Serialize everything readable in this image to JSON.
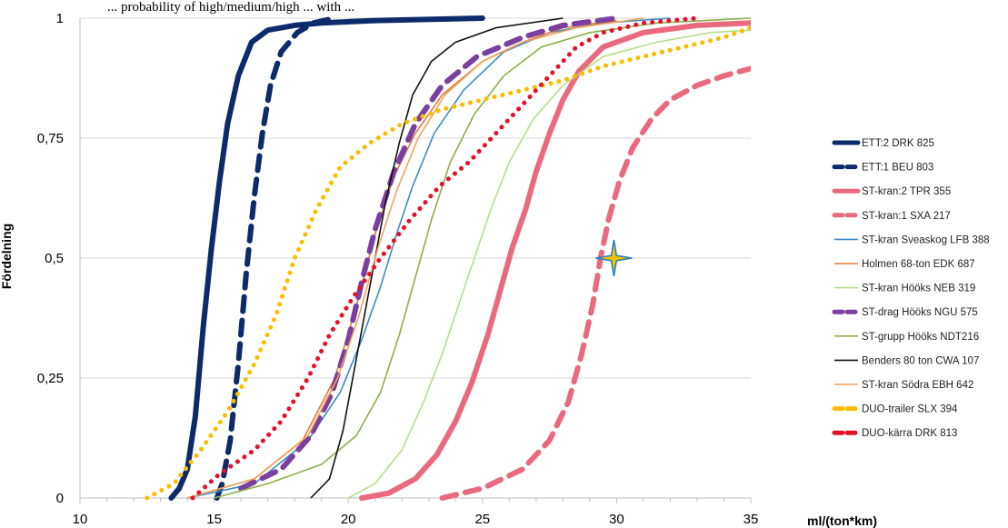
{
  "caption_fragment": "... probability of high/medium/high ... with ...",
  "chart_data": {
    "type": "line",
    "title": "",
    "xlabel": "ml/(ton*km)",
    "ylabel": "Fördelning",
    "xlim": [
      10,
      35
    ],
    "ylim": [
      0,
      1
    ],
    "x_ticks": [
      "10",
      "15",
      "20",
      "25",
      "30",
      "35"
    ],
    "y_ticks": [
      "0",
      "0,25",
      "0,5",
      "0,75",
      "1"
    ],
    "grid": "horizontal",
    "legend_position": "right",
    "series": [
      {
        "name": "ETT:2 DRK 825",
        "color": "#0d2a6b",
        "style": "solid-thick",
        "points": [
          [
            13.4,
            0
          ],
          [
            13.7,
            0.02
          ],
          [
            14.0,
            0.06
          ],
          [
            14.3,
            0.17
          ],
          [
            14.6,
            0.36
          ],
          [
            14.9,
            0.52
          ],
          [
            15.2,
            0.66
          ],
          [
            15.5,
            0.78
          ],
          [
            15.9,
            0.88
          ],
          [
            16.4,
            0.95
          ],
          [
            17.0,
            0.975
          ],
          [
            18.0,
            0.985
          ],
          [
            19.0,
            0.99
          ],
          [
            21.0,
            0.995
          ],
          [
            25,
            1
          ]
        ]
      },
      {
        "name": "ETT:1 BEU 803",
        "color": "#0d2a6b",
        "style": "dashed-thick",
        "points": [
          [
            15.1,
            0
          ],
          [
            15.3,
            0.03
          ],
          [
            15.6,
            0.12
          ],
          [
            15.9,
            0.28
          ],
          [
            16.2,
            0.47
          ],
          [
            16.5,
            0.63
          ],
          [
            16.8,
            0.76
          ],
          [
            17.1,
            0.86
          ],
          [
            17.5,
            0.93
          ],
          [
            18.1,
            0.97
          ],
          [
            18.7,
            0.99
          ],
          [
            19.5,
            1
          ]
        ]
      },
      {
        "name": "ST-kran:2 TPR 355",
        "color": "#e96a7e",
        "style": "solid-thick",
        "points": [
          [
            20.5,
            0
          ],
          [
            21.5,
            0.01
          ],
          [
            22.5,
            0.04
          ],
          [
            23.3,
            0.09
          ],
          [
            24.0,
            0.16
          ],
          [
            24.6,
            0.24
          ],
          [
            25.2,
            0.34
          ],
          [
            25.7,
            0.44
          ],
          [
            26.1,
            0.52
          ],
          [
            26.6,
            0.6
          ],
          [
            27.0,
            0.68
          ],
          [
            27.5,
            0.76
          ],
          [
            28.0,
            0.83
          ],
          [
            28.6,
            0.89
          ],
          [
            29.5,
            0.94
          ],
          [
            31.0,
            0.97
          ],
          [
            33.0,
            0.985
          ],
          [
            35,
            0.99
          ]
        ]
      },
      {
        "name": "ST-kran:1 SXA 217",
        "color": "#e96a7e",
        "style": "dashed-thick",
        "points": [
          [
            23.5,
            0
          ],
          [
            25.0,
            0.02
          ],
          [
            26.5,
            0.06
          ],
          [
            27.5,
            0.12
          ],
          [
            28.2,
            0.2
          ],
          [
            28.7,
            0.3
          ],
          [
            29.1,
            0.4
          ],
          [
            29.4,
            0.5
          ],
          [
            29.7,
            0.58
          ],
          [
            30.1,
            0.66
          ],
          [
            30.6,
            0.73
          ],
          [
            31.3,
            0.79
          ],
          [
            32.0,
            0.83
          ],
          [
            33.0,
            0.86
          ],
          [
            34.0,
            0.88
          ],
          [
            35,
            0.895
          ]
        ]
      },
      {
        "name": "ST-kran Sveaskog LFB 388",
        "color": "#3b8bc2",
        "style": "solid-thin",
        "points": [
          [
            14.0,
            0
          ],
          [
            16.5,
            0.03
          ],
          [
            18.5,
            0.12
          ],
          [
            19.7,
            0.22
          ],
          [
            20.5,
            0.33
          ],
          [
            21.2,
            0.44
          ],
          [
            21.8,
            0.55
          ],
          [
            22.4,
            0.65
          ],
          [
            23.2,
            0.76
          ],
          [
            24.3,
            0.85
          ],
          [
            25.8,
            0.93
          ],
          [
            27.5,
            0.97
          ],
          [
            29.5,
            0.99
          ],
          [
            32,
            1
          ]
        ]
      },
      {
        "name": "Holmen 68-ton EDK 687",
        "color": "#e07b39",
        "style": "solid-thin",
        "points": [
          [
            14.0,
            0
          ],
          [
            16.5,
            0.04
          ],
          [
            18.3,
            0.12
          ],
          [
            19.5,
            0.25
          ],
          [
            20.3,
            0.4
          ],
          [
            21.0,
            0.55
          ],
          [
            21.7,
            0.67
          ],
          [
            22.5,
            0.76
          ],
          [
            23.5,
            0.84
          ],
          [
            25.0,
            0.91
          ],
          [
            26.5,
            0.95
          ],
          [
            28.0,
            0.98
          ],
          [
            30,
            0.995
          ]
        ]
      },
      {
        "name": "ST-kran Hööks NEB 319",
        "color": "#b2df8a",
        "style": "solid-thin",
        "points": [
          [
            20.0,
            0
          ],
          [
            21.0,
            0.03
          ],
          [
            22.0,
            0.1
          ],
          [
            22.8,
            0.2
          ],
          [
            23.5,
            0.3
          ],
          [
            24.1,
            0.4
          ],
          [
            24.7,
            0.5
          ],
          [
            25.3,
            0.6
          ],
          [
            26.0,
            0.7
          ],
          [
            26.9,
            0.79
          ],
          [
            28.0,
            0.86
          ],
          [
            29.5,
            0.92
          ],
          [
            31.5,
            0.95
          ],
          [
            33.5,
            0.97
          ],
          [
            35,
            0.975
          ]
        ]
      },
      {
        "name": "ST-drag Hööks NGU 575",
        "color": "#7b3fa0",
        "style": "dashed-thick",
        "points": [
          [
            16.0,
            0.02
          ],
          [
            17.5,
            0.06
          ],
          [
            18.6,
            0.13
          ],
          [
            19.4,
            0.22
          ],
          [
            20.0,
            0.33
          ],
          [
            20.5,
            0.45
          ],
          [
            21.0,
            0.56
          ],
          [
            21.7,
            0.68
          ],
          [
            22.5,
            0.78
          ],
          [
            23.5,
            0.86
          ],
          [
            24.8,
            0.92
          ],
          [
            26.5,
            0.96
          ],
          [
            28.0,
            0.985
          ],
          [
            30,
            1
          ]
        ]
      },
      {
        "name": "ST-grupp Hööks NDT216",
        "color": "#8ab04a",
        "style": "solid-thin",
        "points": [
          [
            15.0,
            0
          ],
          [
            17.0,
            0.03
          ],
          [
            19.0,
            0.07
          ],
          [
            20.3,
            0.13
          ],
          [
            21.2,
            0.22
          ],
          [
            21.9,
            0.34
          ],
          [
            22.5,
            0.46
          ],
          [
            23.1,
            0.58
          ],
          [
            23.8,
            0.7
          ],
          [
            24.7,
            0.8
          ],
          [
            25.8,
            0.88
          ],
          [
            27.2,
            0.94
          ],
          [
            29.0,
            0.97
          ],
          [
            31.5,
            0.99
          ],
          [
            35,
            1
          ]
        ]
      },
      {
        "name": "Benders 80 ton CWA 107",
        "color": "#111111",
        "style": "solid-thin",
        "points": [
          [
            18.6,
            0
          ],
          [
            19.3,
            0.04
          ],
          [
            19.8,
            0.14
          ],
          [
            20.2,
            0.26
          ],
          [
            20.6,
            0.38
          ],
          [
            21.0,
            0.5
          ],
          [
            21.4,
            0.62
          ],
          [
            21.9,
            0.74
          ],
          [
            22.4,
            0.84
          ],
          [
            23.1,
            0.91
          ],
          [
            24.0,
            0.95
          ],
          [
            25.5,
            0.98
          ],
          [
            28,
            1
          ]
        ]
      },
      {
        "name": "ST-kran Södra EBH 642",
        "color": "#f0a25a",
        "style": "solid-thin",
        "points": [
          [
            14.0,
            0
          ],
          [
            16.5,
            0.04
          ],
          [
            18.5,
            0.13
          ],
          [
            19.6,
            0.25
          ],
          [
            20.4,
            0.38
          ],
          [
            21.1,
            0.52
          ],
          [
            21.8,
            0.64
          ],
          [
            22.6,
            0.75
          ],
          [
            23.6,
            0.84
          ],
          [
            25.0,
            0.91
          ],
          [
            26.5,
            0.95
          ],
          [
            28.5,
            0.98
          ],
          [
            31,
            1
          ]
        ]
      },
      {
        "name": "DUO-trailer SLX 394",
        "color": "#f7be00",
        "style": "dotted-thick",
        "points": [
          [
            12.5,
            0
          ],
          [
            13.5,
            0.03
          ],
          [
            14.5,
            0.1
          ],
          [
            15.5,
            0.18
          ],
          [
            16.5,
            0.28
          ],
          [
            17.3,
            0.38
          ],
          [
            18.0,
            0.5
          ],
          [
            18.8,
            0.6
          ],
          [
            19.7,
            0.69
          ],
          [
            20.8,
            0.74
          ],
          [
            22.0,
            0.78
          ],
          [
            23.5,
            0.81
          ],
          [
            25.0,
            0.83
          ],
          [
            26.5,
            0.85
          ],
          [
            28.0,
            0.87
          ],
          [
            29.5,
            0.9
          ],
          [
            31.0,
            0.92
          ],
          [
            32.5,
            0.94
          ],
          [
            34.0,
            0.96
          ],
          [
            35,
            0.98
          ]
        ]
      },
      {
        "name": "DUO-kärra DRK 813",
        "color": "#e3102a",
        "style": "dotted-thick",
        "points": [
          [
            14.2,
            0
          ],
          [
            15.2,
            0.05
          ],
          [
            16.5,
            0.1
          ],
          [
            17.5,
            0.16
          ],
          [
            18.5,
            0.25
          ],
          [
            19.3,
            0.34
          ],
          [
            20.2,
            0.42
          ],
          [
            21.2,
            0.5
          ],
          [
            22.3,
            0.58
          ],
          [
            23.4,
            0.65
          ],
          [
            24.5,
            0.7
          ],
          [
            25.5,
            0.76
          ],
          [
            26.5,
            0.82
          ],
          [
            27.5,
            0.88
          ],
          [
            28.5,
            0.94
          ],
          [
            29.5,
            0.97
          ],
          [
            31.0,
            0.99
          ],
          [
            33,
            1
          ]
        ]
      }
    ]
  },
  "marker": {
    "name": "four-point-star",
    "x": 29.9,
    "y": 0.5,
    "color": "#f2c200",
    "stroke": "#2a7fc0"
  }
}
